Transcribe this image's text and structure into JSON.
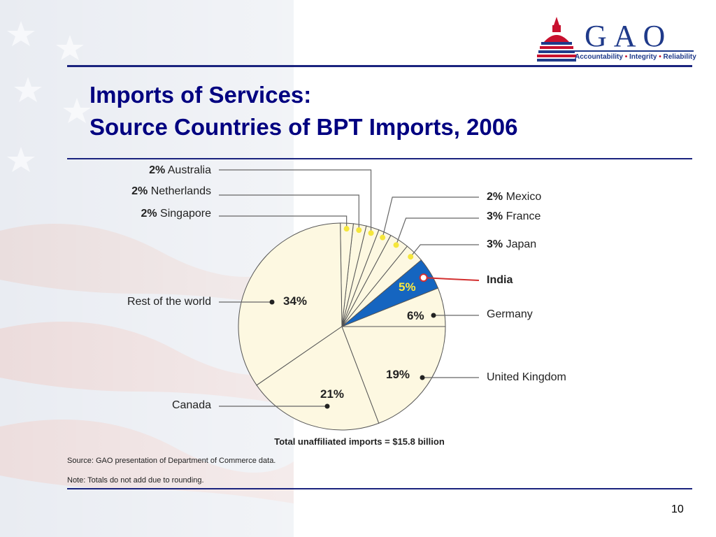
{
  "title_line1": "Imports of Services:",
  "title_line2": "Source Countries of BPT Imports, 2006",
  "logo": {
    "text": "GAO",
    "tagline_parts": [
      "Accountability",
      "Integrity",
      "Reliability"
    ],
    "separator": "•"
  },
  "page_number": "10",
  "colors": {
    "title": "#000080",
    "rule": "#1a237e",
    "slice_fill": "#fdf8e1",
    "india_fill": "#1565c0",
    "india_label": "#ffeb3b",
    "india_leader": "#d32f2f",
    "marker_small": "#f5e63b"
  },
  "chart_data": {
    "type": "pie",
    "total_label": "Total unaffiliated imports = $15.8 billion",
    "source": "Source: GAO presentation of Department of Commerce data.",
    "note": "Note: Totals do not add due to rounding.",
    "slices": [
      {
        "name": "Germany",
        "value": 6,
        "label": "6%"
      },
      {
        "name": "India",
        "value": 5,
        "label": "5%",
        "highlight": true
      },
      {
        "name": "Japan",
        "value": 3,
        "label": "3%"
      },
      {
        "name": "France",
        "value": 3,
        "label": "3%"
      },
      {
        "name": "Mexico",
        "value": 2,
        "label": "2%"
      },
      {
        "name": "Australia",
        "value": 2,
        "label": "2%"
      },
      {
        "name": "Netherlands",
        "value": 2,
        "label": "2%"
      },
      {
        "name": "Singapore",
        "value": 2,
        "label": "2%"
      },
      {
        "name": "Rest of the world",
        "value": 34,
        "label": "34%"
      },
      {
        "name": "Canada",
        "value": 21,
        "label": "21%"
      },
      {
        "name": "United Kingdom",
        "value": 19,
        "label": "19%"
      }
    ]
  }
}
